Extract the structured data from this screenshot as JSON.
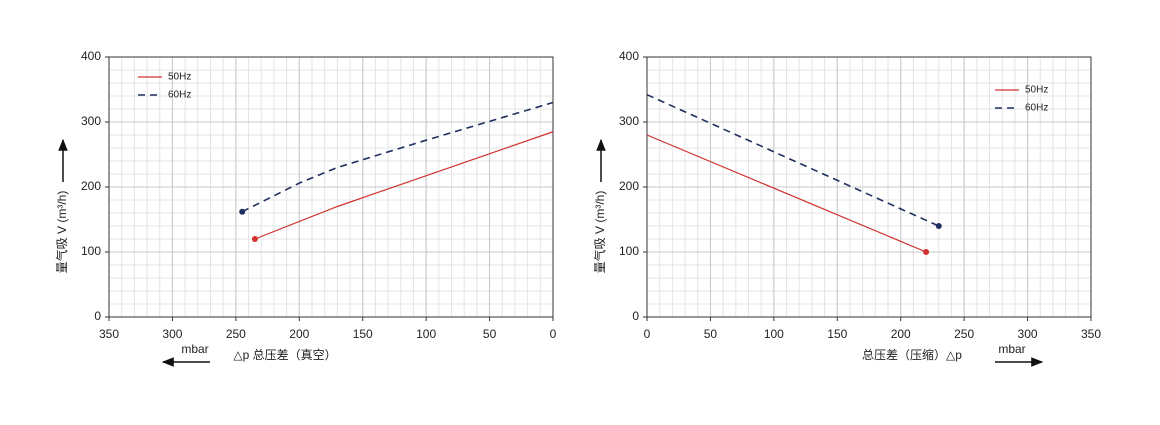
{
  "chart_data": [
    {
      "type": "line",
      "x_label": "△p  总压差（真空）",
      "y_label": "量气吸 V (m³/h)",
      "unit_label": "mbar",
      "unit_arrow": "left",
      "xlim": [
        350,
        0
      ],
      "ylim": [
        0,
        400
      ],
      "xticks": [
        350,
        300,
        250,
        200,
        150,
        100,
        50,
        0
      ],
      "yticks": [
        0,
        100,
        200,
        300,
        400
      ],
      "grid": true,
      "legend": "upper left",
      "end_marker": true,
      "series": [
        {
          "name": "50Hz",
          "color": "#d0312d",
          "dash": false,
          "x": [
            235,
            170,
            0
          ],
          "values": [
            120,
            170,
            285
          ]
        },
        {
          "name": "60Hz",
          "color": "#1f2f5f",
          "dash": true,
          "x": [
            245,
            200,
            170,
            100,
            0
          ],
          "values": [
            162,
            206,
            230,
            272,
            330
          ]
        }
      ]
    },
    {
      "type": "line",
      "x_label": "总压差（压缩）△p",
      "y_label": "量气吸 V (m³/h)",
      "unit_label": "mbar",
      "unit_arrow": "right",
      "xlim": [
        0,
        350
      ],
      "ylim": [
        0,
        400
      ],
      "xticks": [
        0,
        50,
        100,
        150,
        200,
        250,
        300,
        350
      ],
      "yticks": [
        0,
        100,
        200,
        300,
        400
      ],
      "grid": true,
      "legend": "upper right",
      "end_marker": true,
      "series": [
        {
          "name": "50Hz",
          "color": "#d0312d",
          "dash": false,
          "x": [
            0,
            220
          ],
          "values": [
            280,
            100
          ]
        },
        {
          "name": "60Hz",
          "color": "#1f2f5f",
          "dash": true,
          "x": [
            0,
            230
          ],
          "values": [
            342,
            140
          ]
        }
      ]
    }
  ]
}
